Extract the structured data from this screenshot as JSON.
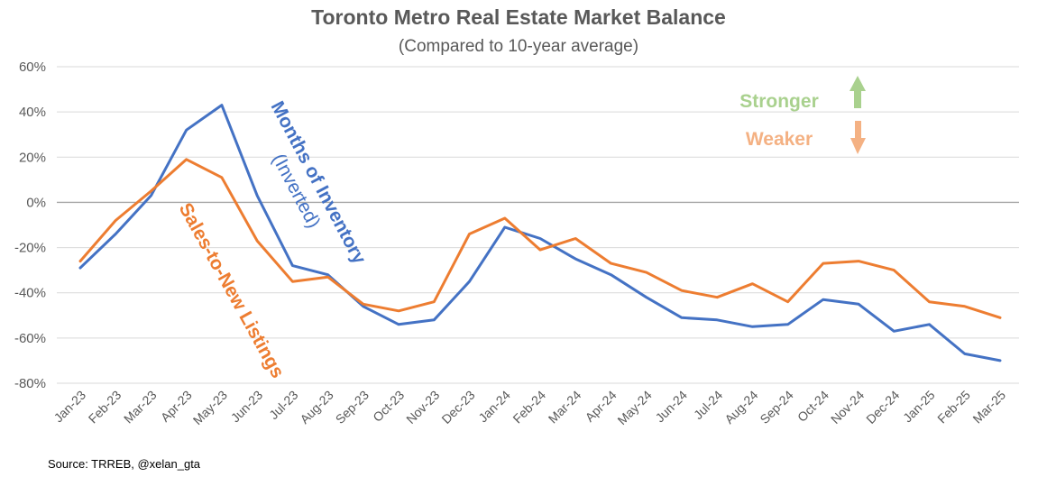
{
  "chart_data": {
    "type": "line",
    "title": "Toronto Metro Real Estate Market Balance",
    "subtitle": "(Compared to 10-year average)",
    "xlabel": "",
    "ylabel": "",
    "ylim": [
      -80,
      60
    ],
    "yticks": [
      "60%",
      "40%",
      "20%",
      "0%",
      "-20%",
      "-40%",
      "-60%",
      "-80%"
    ],
    "ytick_values": [
      60,
      40,
      20,
      0,
      -20,
      -40,
      -60,
      -80
    ],
    "categories": [
      "Jan-23",
      "Feb-23",
      "Mar-23",
      "Apr-23",
      "May-23",
      "Jun-23",
      "Jul-23",
      "Aug-23",
      "Sep-23",
      "Oct-23",
      "Nov-23",
      "Dec-23",
      "Jan-24",
      "Feb-24",
      "Mar-24",
      "Apr-24",
      "May-24",
      "Jun-24",
      "Jul-24",
      "Aug-24",
      "Sep-24",
      "Oct-24",
      "Nov-24",
      "Dec-24",
      "Jan-25",
      "Feb-25",
      "Mar-25"
    ],
    "series": [
      {
        "name": "Months of Inventory (Inverted)",
        "color": "#4472C4",
        "values": [
          -29,
          -14,
          3,
          32,
          43,
          3,
          -28,
          -32,
          -46,
          -54,
          -52,
          -35,
          -11,
          -16,
          -25,
          -32,
          -42,
          -51,
          -52,
          -55,
          -54,
          -43,
          -45,
          -57,
          -54,
          -67,
          -70
        ]
      },
      {
        "name": "Sales-to-New Listings",
        "color": "#ED7D31",
        "values": [
          -26,
          -8,
          5,
          19,
          11,
          -17,
          -35,
          -33,
          -45,
          -48,
          -44,
          -14,
          -7,
          -21,
          -16,
          -27,
          -31,
          -39,
          -42,
          -36,
          -44,
          -27,
          -26,
          -30,
          -44,
          -46,
          -51
        ]
      }
    ],
    "grid": true,
    "annotations": {
      "months_line1": "Months of Inventory",
      "months_line2": "(Inverted)",
      "sales": "Sales-to-New Listings",
      "stronger": "Stronger",
      "weaker": "Weaker"
    },
    "colors": {
      "stronger": "#A9D18E",
      "weaker": "#F4B183",
      "gridline": "#D9D9D9",
      "zeroline": "#A6A6A6"
    },
    "source": "Source: TRREB, @xelan_gta"
  }
}
